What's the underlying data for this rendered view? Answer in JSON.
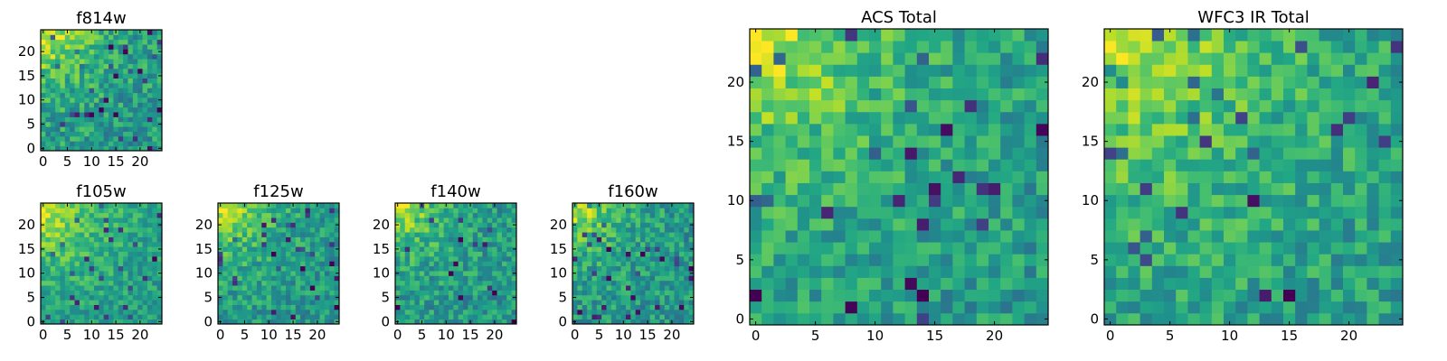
{
  "chart_data": [
    {
      "type": "heatmap",
      "title": "f814w",
      "xlabel": "",
      "ylabel": "",
      "grid": false,
      "shape": [
        25,
        25
      ],
      "origin": "lower",
      "colormap": "viridis",
      "xlim": [
        -0.5,
        24.5
      ],
      "ylim": [
        -0.5,
        24.5
      ],
      "xticks": [
        0,
        5,
        10,
        15,
        20
      ],
      "yticks": [
        0,
        5,
        10,
        15,
        20
      ],
      "value_range": [
        0,
        1
      ],
      "description_of_values": "per-pixel intensity, brightest near top-left corner, noisy elsewhere",
      "bright_corner": [
        0,
        24
      ],
      "noise": 0.18,
      "falloff": 9,
      "seed": 11
    },
    {
      "type": "heatmap",
      "title": "f105w",
      "xlabel": "",
      "ylabel": "",
      "grid": false,
      "shape": [
        25,
        25
      ],
      "origin": "lower",
      "colormap": "viridis",
      "xlim": [
        -0.5,
        24.5
      ],
      "ylim": [
        -0.5,
        24.5
      ],
      "xticks": [
        0,
        5,
        10,
        15,
        20
      ],
      "yticks": [
        0,
        5,
        10,
        15,
        20
      ],
      "value_range": [
        0,
        1
      ],
      "bright_corner": [
        0,
        24
      ],
      "noise": 0.14,
      "falloff": 11,
      "seed": 23
    },
    {
      "type": "heatmap",
      "title": "f125w",
      "xlabel": "",
      "ylabel": "",
      "grid": false,
      "shape": [
        25,
        25
      ],
      "origin": "lower",
      "colormap": "viridis",
      "xlim": [
        -0.5,
        24.5
      ],
      "ylim": [
        -0.5,
        24.5
      ],
      "xticks": [
        0,
        5,
        10,
        15,
        20
      ],
      "yticks": [
        0,
        5,
        10,
        15,
        20
      ],
      "value_range": [
        0,
        1
      ],
      "bright_corner": [
        0,
        24
      ],
      "noise": 0.16,
      "falloff": 8,
      "seed": 37
    },
    {
      "type": "heatmap",
      "title": "f140w",
      "xlabel": "",
      "ylabel": "",
      "grid": false,
      "shape": [
        25,
        25
      ],
      "origin": "lower",
      "colormap": "viridis",
      "xlim": [
        -0.5,
        24.5
      ],
      "ylim": [
        -0.5,
        24.5
      ],
      "xticks": [
        0,
        5,
        10,
        15,
        20
      ],
      "yticks": [
        0,
        5,
        10,
        15,
        20
      ],
      "value_range": [
        0,
        1
      ],
      "bright_corner": [
        0,
        24
      ],
      "noise": 0.17,
      "falloff": 7,
      "seed": 41
    },
    {
      "type": "heatmap",
      "title": "f160w",
      "xlabel": "",
      "ylabel": "",
      "grid": false,
      "shape": [
        25,
        25
      ],
      "origin": "lower",
      "colormap": "viridis",
      "xlim": [
        -0.5,
        24.5
      ],
      "ylim": [
        -0.5,
        24.5
      ],
      "xticks": [
        0,
        5,
        10,
        15,
        20
      ],
      "yticks": [
        0,
        5,
        10,
        15,
        20
      ],
      "value_range": [
        0,
        1
      ],
      "bright_corner": [
        0,
        24
      ],
      "noise": 0.17,
      "falloff": 7,
      "seed": 53
    },
    {
      "type": "heatmap",
      "title": "ACS Total",
      "xlabel": "",
      "ylabel": "",
      "grid": false,
      "shape": [
        25,
        25
      ],
      "origin": "lower",
      "colormap": "viridis",
      "xlim": [
        -0.5,
        24.5
      ],
      "ylim": [
        -0.5,
        24.5
      ],
      "xticks": [
        0,
        5,
        10,
        15,
        20
      ],
      "yticks": [
        0,
        5,
        10,
        15,
        20
      ],
      "value_range": [
        0,
        1
      ],
      "bright_corner": [
        0,
        24
      ],
      "noise": 0.16,
      "falloff": 10,
      "seed": 67
    },
    {
      "type": "heatmap",
      "title": "WFC3 IR Total",
      "xlabel": "",
      "ylabel": "",
      "grid": false,
      "shape": [
        25,
        25
      ],
      "origin": "lower",
      "colormap": "viridis",
      "xlim": [
        -0.5,
        24.5
      ],
      "ylim": [
        -0.5,
        24.5
      ],
      "xticks": [
        0,
        5,
        10,
        15,
        20
      ],
      "yticks": [
        0,
        5,
        10,
        15,
        20
      ],
      "value_range": [
        0,
        1
      ],
      "bright_corner": [
        0,
        24
      ],
      "noise": 0.16,
      "falloff": 12,
      "seed": 79
    }
  ]
}
